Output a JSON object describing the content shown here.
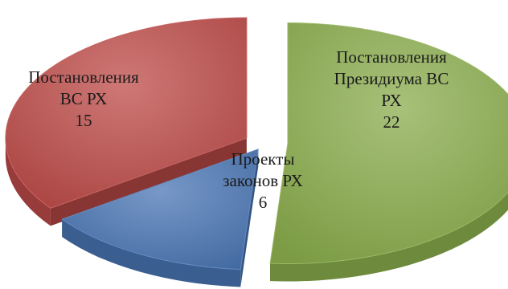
{
  "chart_data": {
    "type": "pie",
    "title": "",
    "categories": [
      "Постановления Президиума ВС РХ",
      "Проекты законов РХ",
      "Постановления ВС РХ"
    ],
    "values": [
      22,
      6,
      15
    ],
    "colors": [
      "#8aac4c",
      "#4a76b4",
      "#bd4b48"
    ],
    "labels": [
      {
        "lines": [
          "Постановления",
          "Президиума ВС",
          "РХ"
        ],
        "value": "22"
      },
      {
        "lines": [
          "Проекты",
          "законов РХ"
        ],
        "value": "6"
      },
      {
        "lines": [
          "Постановления",
          "ВС РХ"
        ],
        "value": "15"
      }
    ],
    "style": "3d-exploded"
  }
}
